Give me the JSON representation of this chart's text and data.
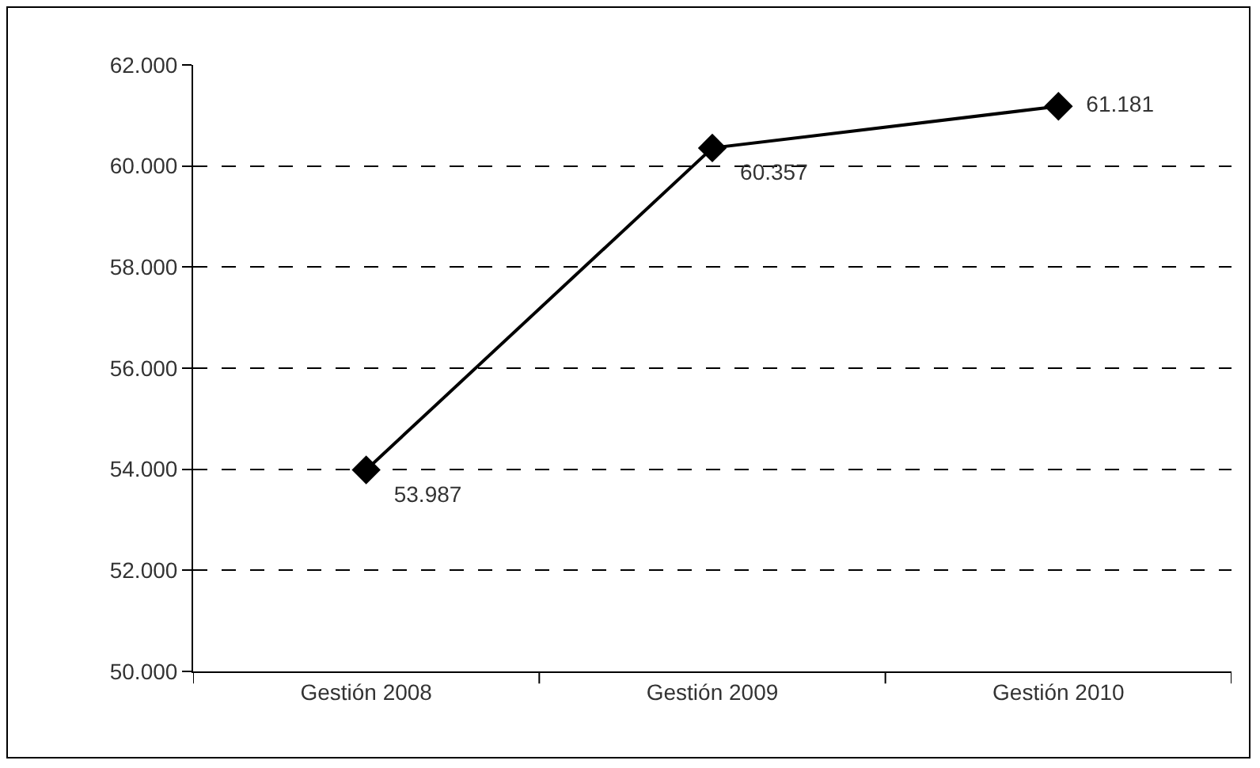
{
  "chart_data": {
    "type": "line",
    "categories": [
      "Gestión 2008",
      "Gestión 2009",
      "Gestión 2010"
    ],
    "series": [
      {
        "color": "#000000",
        "values": [
          53987,
          60357,
          61181
        ],
        "value_labels": [
          "53.987",
          "60.357",
          "61.181"
        ]
      }
    ],
    "ylim": [
      50000,
      62000
    ],
    "yticks": [
      {
        "value": 50000,
        "label": "50.000"
      },
      {
        "value": 52000,
        "label": "52.000"
      },
      {
        "value": 54000,
        "label": "54.000"
      },
      {
        "value": 56000,
        "label": "56.000"
      },
      {
        "value": 58000,
        "label": "58.000"
      },
      {
        "value": 60000,
        "label": "60.000"
      },
      {
        "value": 62000,
        "label": "62.000"
      }
    ],
    "grid": "y",
    "legend": false,
    "marker": "diamond",
    "line_style": "solid"
  }
}
